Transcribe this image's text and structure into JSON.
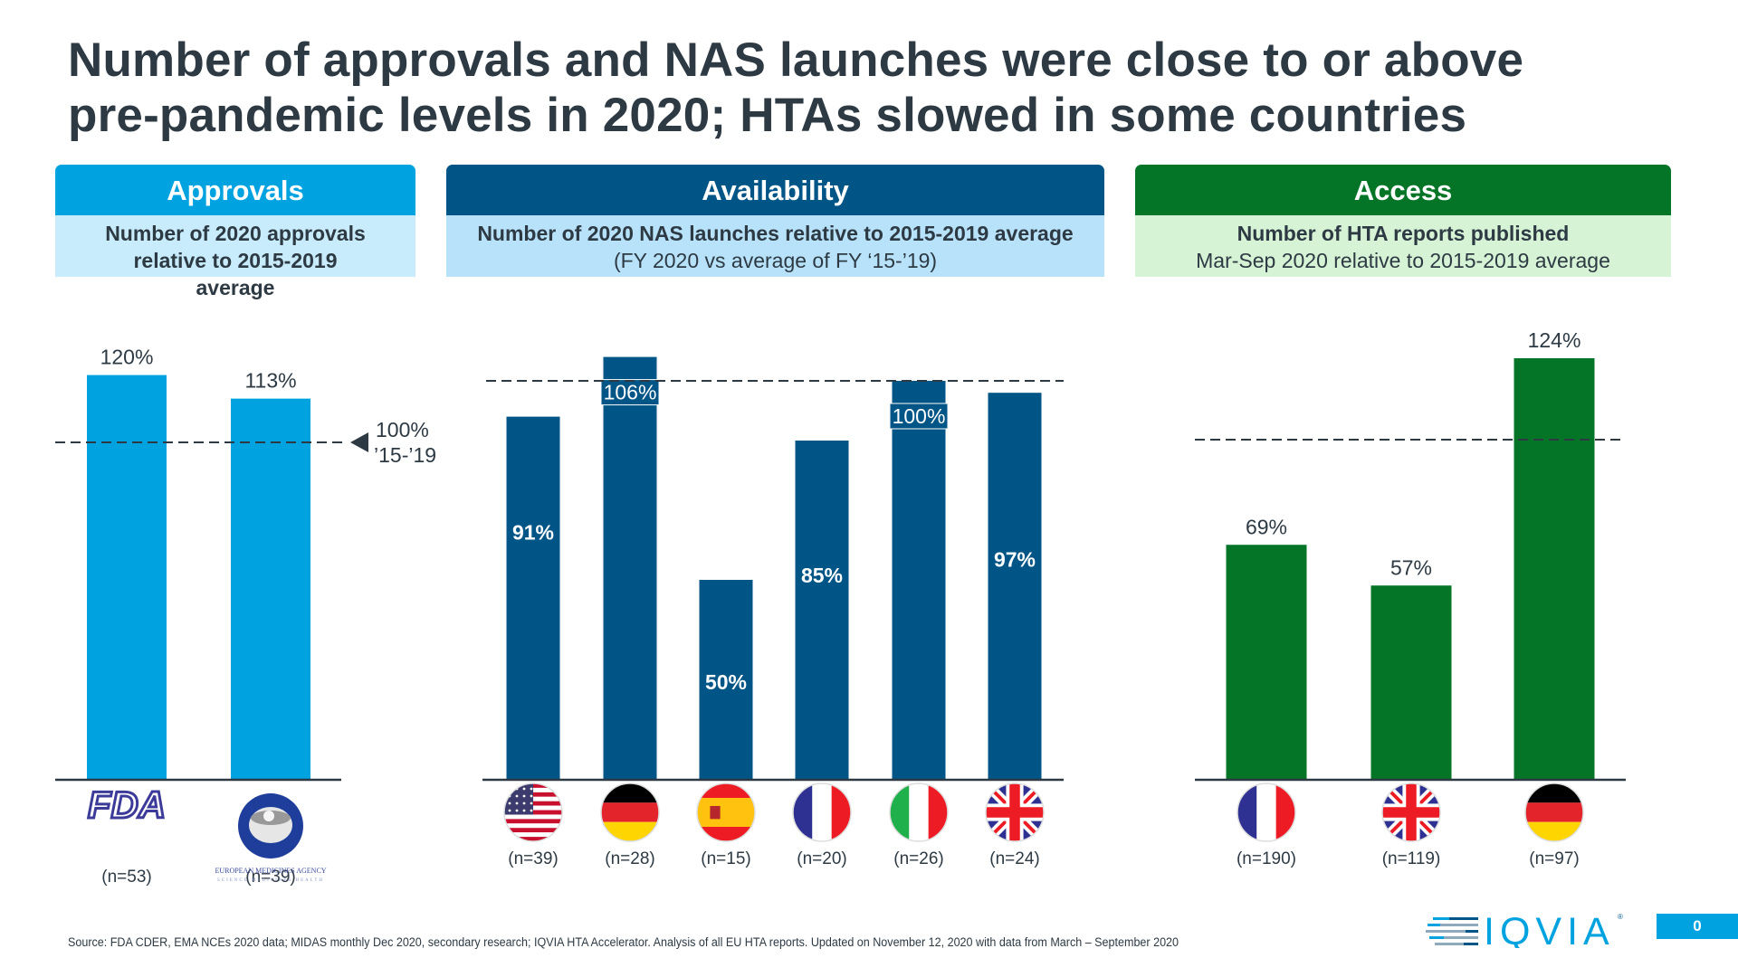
{
  "title": {
    "line1": "Number of approvals and NAS launches were close to or above",
    "line2": "pre-pandemic levels in 2020; HTAs slowed in some countries"
  },
  "panels": {
    "approvals": {
      "header": "Approvals",
      "sub_bold": "Number of 2020 approvals relative to 2015-2019 average",
      "sub_normal": "",
      "color": "#00a3e0"
    },
    "availability": {
      "header": "Availability",
      "sub_bold": "Number of 2020 NAS launches relative to 2015-2019 average",
      "sub_normal": "(FY 2020 vs average of FY ‘15-’19)",
      "color": "#005587"
    },
    "access": {
      "header": "Access",
      "sub_bold": "Number of HTA reports published",
      "sub_normal": "Mar-Sep 2020 relative to 2015-2019 average",
      "color": "#047427"
    }
  },
  "reference": {
    "value": 100,
    "label_line1": "100%",
    "label_line2": "’15-’19"
  },
  "chart_data": [
    {
      "type": "bar",
      "title": "Approvals",
      "categories": [
        "FDA",
        "EMA"
      ],
      "category_icons": [
        "fda-logo",
        "ema-logo"
      ],
      "category_sublabels": [
        "EUROPEAN MEDICINES AGENCY / SCIENCE MEDICINES HEALTH"
      ],
      "values": [
        120,
        113
      ],
      "value_labels": [
        "120%",
        "113%"
      ],
      "n_labels": [
        "(n=53)",
        "(n=39)"
      ],
      "reference_line": 100,
      "unit": "%",
      "color": "#00a3e0"
    },
    {
      "type": "bar",
      "title": "Availability",
      "categories": [
        "United States",
        "Germany",
        "Spain",
        "France",
        "Italy",
        "United Kingdom"
      ],
      "category_icons": [
        "us-flag",
        "germany-flag",
        "spain-flag",
        "france-flag",
        "italy-flag",
        "uk-flag"
      ],
      "values": [
        91,
        106,
        50,
        85,
        100,
        97
      ],
      "value_labels": [
        "91%",
        "106%",
        "50%",
        "85%",
        "100%",
        "97%"
      ],
      "n_labels": [
        "(n=39)",
        "(n=28)",
        "(n=15)",
        "(n=20)",
        "(n=26)",
        "(n=24)"
      ],
      "reference_line": 100,
      "unit": "%",
      "color": "#005587"
    },
    {
      "type": "bar",
      "title": "Access",
      "categories": [
        "France",
        "United Kingdom",
        "Germany"
      ],
      "category_icons": [
        "france-flag",
        "uk-flag",
        "germany-flag"
      ],
      "values": [
        69,
        57,
        124
      ],
      "value_labels": [
        "69%",
        "57%",
        "124%"
      ],
      "n_labels": [
        "(n=190)",
        "(n=119)",
        "(n=97)"
      ],
      "reference_line": 100,
      "unit": "%",
      "color": "#047427"
    }
  ],
  "footer": {
    "source": "Source: FDA CDER, EMA NCEs 2020 data; MIDAS monthly Dec 2020, secondary research; IQVIA HTA Accelerator. Analysis of all EU HTA reports. Updated on November 12, 2020 with data from March – September 2020",
    "logo_text": "IQVIA",
    "page_number": "0"
  }
}
